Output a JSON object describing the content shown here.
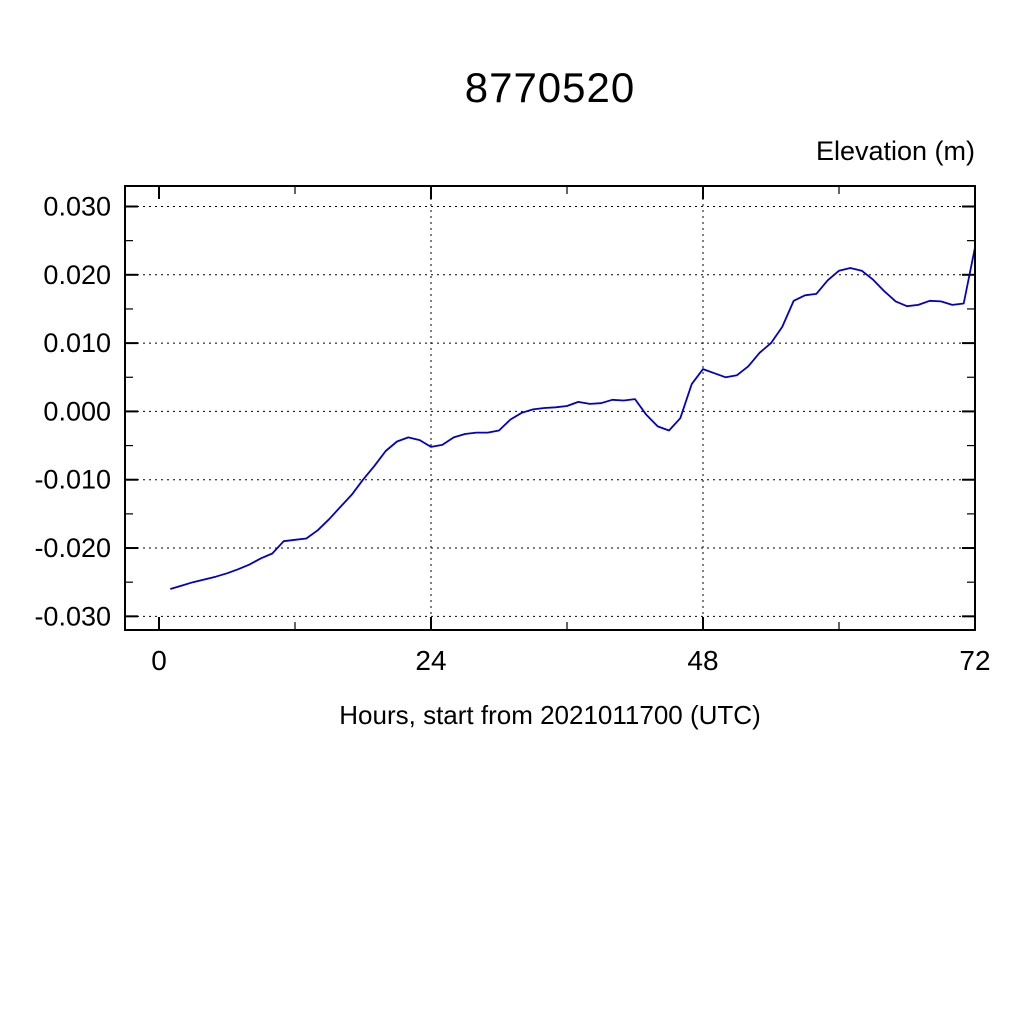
{
  "title": "8770520",
  "ylabel_right": "Elevation (m)",
  "xlabel": "Hours, start from 2021011700 (UTC)",
  "chart_data": {
    "type": "line",
    "title": "8770520",
    "station_id": "8770520",
    "ylabel": "Elevation (m)",
    "xlabel": "Hours, start from 2021011700 (UTC)",
    "xlim": [
      -3,
      72
    ],
    "ylim": [
      -0.032,
      0.033
    ],
    "xticks": [
      0,
      24,
      48,
      72
    ],
    "xtick_labels": [
      "0",
      "24",
      "48",
      "72"
    ],
    "yticks": [
      -0.03,
      -0.02,
      -0.01,
      0.0,
      0.01,
      0.02,
      0.03
    ],
    "ytick_labels": [
      "-0.030",
      "-0.020",
      "-0.010",
      "0.000",
      "0.010",
      "0.020",
      "0.030"
    ],
    "x_minor_ticks": [
      12,
      36,
      60
    ],
    "y_minor_ticks": [
      -0.025,
      -0.015,
      -0.005,
      0.005,
      0.015,
      0.025
    ],
    "grid_x": [
      24,
      48
    ],
    "grid": true,
    "legend": "none",
    "line_color": "#0000cd",
    "series": [
      {
        "name": "elevation",
        "x": [
          1,
          2,
          3,
          4,
          5,
          6,
          7,
          8,
          9,
          10,
          11,
          12,
          13,
          14,
          15,
          16,
          17,
          18,
          19,
          20,
          21,
          22,
          23,
          24,
          25,
          26,
          27,
          28,
          29,
          30,
          31,
          32,
          33,
          34,
          35,
          36,
          37,
          38,
          39,
          40,
          41,
          42,
          43,
          44,
          45,
          46,
          47,
          48,
          49,
          50,
          51,
          52,
          53,
          54,
          55,
          56,
          57,
          58,
          59,
          60,
          61,
          62,
          63,
          64,
          65,
          66,
          67,
          68,
          69,
          70,
          71,
          72
        ],
        "y": [
          -0.026,
          -0.0255,
          -0.025,
          -0.0246,
          -0.0242,
          -0.0237,
          -0.0231,
          -0.0224,
          -0.0215,
          -0.0208,
          -0.019,
          -0.0188,
          -0.0186,
          -0.0174,
          -0.0158,
          -0.014,
          -0.0122,
          -0.01,
          -0.008,
          -0.0058,
          -0.0044,
          -0.0038,
          -0.0042,
          -0.0052,
          -0.0049,
          -0.0038,
          -0.0033,
          -0.0031,
          -0.0031,
          -0.0028,
          -0.0012,
          -0.0002,
          0.0003,
          0.0005,
          0.0006,
          0.0008,
          0.0014,
          0.0011,
          0.0012,
          0.0017,
          0.0016,
          0.0018,
          -0.0005,
          -0.0022,
          -0.0028,
          -0.001,
          0.004,
          0.0062,
          0.0056,
          0.005,
          0.0053,
          0.0066,
          0.0086,
          0.01,
          0.0124,
          0.0162,
          0.017,
          0.0172,
          0.0192,
          0.0206,
          0.021,
          0.0206,
          0.0193,
          0.0176,
          0.0161,
          0.0154,
          0.0156,
          0.0162,
          0.0161,
          0.0156,
          0.0158,
          0.024
        ]
      }
    ]
  }
}
